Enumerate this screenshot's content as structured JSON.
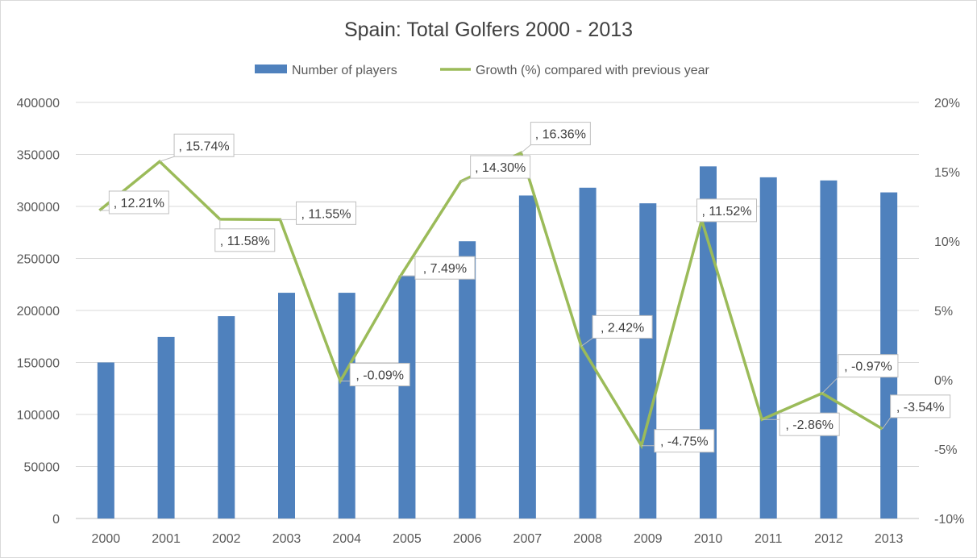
{
  "chart_data": {
    "type": "bar",
    "title": "Spain: Total Golfers 2000 - 2013",
    "categories": [
      "2000",
      "2001",
      "2002",
      "2003",
      "2004",
      "2005",
      "2006",
      "2007",
      "2008",
      "2009",
      "2010",
      "2011",
      "2012",
      "2013"
    ],
    "series": [
      {
        "name": "Number of players",
        "type": "bar",
        "axis": "left",
        "color": "#4f81bd",
        "values": [
          150000,
          174500,
          194500,
          217000,
          217000,
          233500,
          266500,
          310500,
          318000,
          303000,
          338500,
          328000,
          325000,
          313500
        ]
      },
      {
        "name": "Growth (%) compared with previous year",
        "type": "line",
        "axis": "right",
        "color": "#9bbb59",
        "values": [
          12.21,
          15.74,
          11.58,
          11.55,
          -0.09,
          7.49,
          14.3,
          16.36,
          2.42,
          -4.75,
          11.52,
          -2.86,
          -0.97,
          -3.54
        ],
        "data_labels": [
          ", 12.21%",
          ", 15.74%",
          ", 11.58%",
          ", 11.55%",
          ", -0.09%",
          ", 7.49%",
          ", 14.30%",
          ", 16.36%",
          ", 2.42%",
          ", -4.75%",
          ", 11.52%",
          ", -2.86%",
          ", -0.97%",
          ", -3.54%"
        ]
      }
    ],
    "y_left": {
      "ylim": [
        0,
        400000
      ],
      "ticks": [
        0,
        50000,
        100000,
        150000,
        200000,
        250000,
        300000,
        350000,
        400000
      ],
      "tick_labels": [
        "0",
        "50000",
        "100000",
        "150000",
        "200000",
        "250000",
        "300000",
        "350000",
        "400000"
      ]
    },
    "y_right": {
      "ylim": [
        -10,
        20
      ],
      "ticks": [
        -10,
        -5,
        0,
        5,
        10,
        15,
        20
      ],
      "tick_labels": [
        "-10%",
        "-5%",
        "0%",
        "5%",
        "10%",
        "15%",
        "20%"
      ]
    },
    "xlabel": "",
    "ylabel": "",
    "grid": true,
    "legend_position": "top"
  }
}
